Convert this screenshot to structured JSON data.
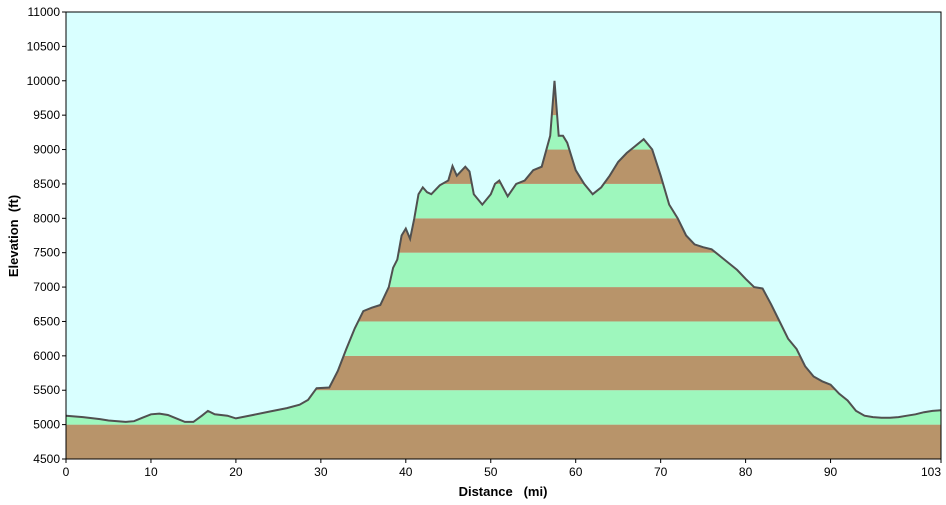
{
  "chart_data": {
    "type": "area",
    "xlabel": "Distance   (mi)",
    "ylabel": "Elevation  (ft)",
    "xlim": [
      0,
      103
    ],
    "ylim": [
      4500,
      11000
    ],
    "x_ticks": [
      0,
      10,
      20,
      30,
      40,
      50,
      60,
      70,
      80,
      90,
      103
    ],
    "y_ticks": [
      4500,
      5000,
      5500,
      6000,
      6500,
      7000,
      7500,
      8000,
      8500,
      9000,
      9500,
      10000,
      10500,
      11000
    ],
    "grid": false,
    "legend": "none",
    "band_height_ft": 500,
    "colors": {
      "background": "#d9ffff",
      "band_even": "#b8946a",
      "band_odd": "#9ef7bd",
      "profile_line": "#505050"
    },
    "x": [
      0,
      2,
      4,
      5,
      7,
      8,
      9,
      10,
      11,
      12,
      13,
      14,
      15,
      16,
      16.7,
      17.5,
      19,
      20,
      22,
      24,
      26,
      27.5,
      28.5,
      29.5,
      31,
      32,
      33,
      34,
      35,
      36,
      37,
      38,
      38.5,
      39,
      39.5,
      40,
      40.5,
      41,
      41.5,
      42,
      42.5,
      43,
      44,
      45,
      45.5,
      46,
      47,
      47.5,
      48,
      49,
      50,
      50.5,
      51,
      52,
      53,
      54,
      55,
      56,
      57,
      57.5,
      58,
      58.5,
      59,
      60,
      61,
      62,
      63,
      64,
      65,
      66,
      67,
      68,
      69,
      70,
      71,
      72,
      73,
      74,
      75,
      76,
      77,
      78,
      79,
      80,
      81,
      82,
      83,
      84,
      85,
      86,
      87,
      88,
      89,
      90,
      91,
      92,
      93,
      94,
      95,
      96,
      97,
      98,
      99,
      100,
      101,
      102,
      103
    ],
    "y": [
      5130,
      5110,
      5080,
      5060,
      5040,
      5050,
      5100,
      5150,
      5160,
      5140,
      5090,
      5040,
      5040,
      5130,
      5200,
      5150,
      5130,
      5090,
      5140,
      5190,
      5240,
      5290,
      5360,
      5530,
      5540,
      5780,
      6100,
      6400,
      6650,
      6700,
      6740,
      7000,
      7280,
      7400,
      7750,
      7850,
      7700,
      8000,
      8350,
      8450,
      8380,
      8350,
      8480,
      8550,
      8760,
      8620,
      8750,
      8680,
      8350,
      8200,
      8350,
      8500,
      8550,
      8320,
      8500,
      8550,
      8700,
      8750,
      9200,
      10000,
      9200,
      9200,
      9100,
      8700,
      8500,
      8350,
      8450,
      8620,
      8820,
      8950,
      9050,
      9150,
      9000,
      8620,
      8200,
      8000,
      7750,
      7620,
      7580,
      7550,
      7450,
      7350,
      7250,
      7120,
      7000,
      6980,
      6750,
      6500,
      6250,
      6100,
      5850,
      5700,
      5630,
      5580,
      5450,
      5350,
      5200,
      5130,
      5110,
      5100,
      5100,
      5110,
      5130,
      5150,
      5180,
      5200,
      5210
    ]
  }
}
